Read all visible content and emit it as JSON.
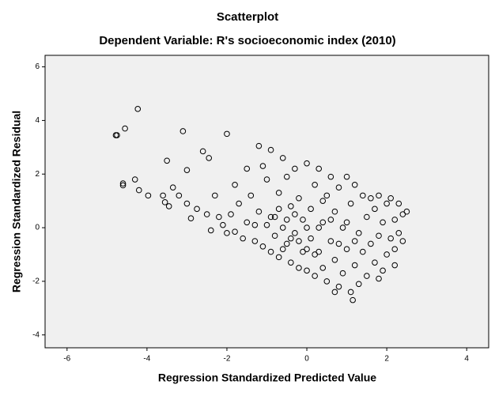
{
  "chart_data": {
    "type": "scatter",
    "title": "Scatterplot",
    "subtitle": "Dependent Variable: R's socioeconomic index (2010)",
    "x_label": "Regression Standardized Predicted Value",
    "y_label": "Regression Standardized Residual",
    "color": "#000000",
    "xlim": [
      -6.55,
      4.55
    ],
    "ylim": [
      -4.48,
      6.43
    ],
    "xticks": [
      -6,
      -4,
      -2,
      0,
      2,
      4
    ],
    "yticks": [
      -4,
      -2,
      0,
      2,
      4,
      6
    ],
    "x": [
      -4.78,
      -4.75,
      -4.55,
      -4.23,
      -3.1,
      -2.0,
      -4.3,
      -4.6,
      -4.6,
      -4.2,
      -3.97,
      -3.6,
      -3.5,
      -3.35,
      -3.55,
      -3.45,
      -3.2,
      -3.0,
      -2.6,
      -2.45,
      -2.75,
      -3.0,
      -2.9,
      -2.5,
      -2.3,
      -2.2,
      -2.1,
      -2.0,
      -1.9,
      -1.8,
      -1.7,
      -1.6,
      -1.5,
      -1.4,
      -1.3,
      -1.2,
      -1.2,
      -1.1,
      -1.0,
      -1.0,
      -0.9,
      -0.9,
      -0.8,
      -0.8,
      -0.7,
      -0.7,
      -0.6,
      -0.6,
      -0.5,
      -0.5,
      -0.4,
      -0.4,
      -0.3,
      -0.3,
      -0.2,
      -0.2,
      -0.1,
      -0.1,
      0.0,
      0.0,
      0.1,
      0.1,
      0.2,
      0.2,
      0.3,
      0.3,
      0.4,
      0.4,
      0.5,
      0.5,
      0.6,
      0.6,
      0.7,
      0.7,
      0.8,
      0.8,
      0.9,
      0.9,
      1.0,
      1.0,
      1.1,
      1.1,
      1.2,
      1.2,
      1.3,
      1.3,
      1.4,
      1.4,
      1.5,
      1.5,
      1.6,
      1.6,
      1.7,
      1.7,
      1.8,
      1.8,
      1.9,
      1.9,
      2.0,
      2.0,
      2.1,
      2.1,
      2.2,
      2.2,
      2.3,
      2.3,
      2.4,
      2.4,
      2.5,
      1.15,
      0.7,
      2.2,
      1.8,
      -1.5,
      -1.1,
      -2.4,
      -1.8,
      0.0,
      -0.3,
      0.3,
      0.6,
      -0.6,
      -0.2,
      0.2,
      0.0,
      -0.7,
      0.4,
      1.0,
      0.8,
      -0.4,
      -0.9,
      -1.3,
      -0.5,
      1.2
    ],
    "values": [
      3.45,
      3.45,
      3.7,
      4.43,
      3.6,
      3.5,
      1.8,
      1.65,
      1.58,
      1.4,
      1.2,
      1.2,
      2.5,
      1.5,
      0.95,
      0.8,
      1.2,
      2.15,
      2.85,
      2.6,
      0.7,
      0.9,
      0.35,
      0.5,
      1.2,
      0.4,
      0.1,
      -0.2,
      0.5,
      1.6,
      0.9,
      -0.4,
      0.2,
      1.2,
      -0.5,
      0.6,
      3.05,
      -0.7,
      1.8,
      0.1,
      -0.9,
      2.9,
      0.4,
      -0.3,
      1.3,
      -1.1,
      2.6,
      0.0,
      -0.6,
      1.9,
      -1.3,
      0.8,
      2.2,
      -0.2,
      -1.5,
      1.1,
      0.3,
      -0.9,
      2.4,
      -1.6,
      0.7,
      -0.4,
      1.6,
      -1.8,
      -0.9,
      2.2,
      0.2,
      -1.5,
      1.2,
      -2.0,
      -0.5,
      1.9,
      -1.2,
      0.6,
      -2.2,
      1.5,
      0.0,
      -1.7,
      1.9,
      -0.8,
      -2.4,
      0.9,
      -1.4,
      1.6,
      -0.2,
      -2.1,
      1.2,
      -0.9,
      0.4,
      -1.8,
      1.1,
      -0.6,
      -1.3,
      0.7,
      1.2,
      -0.3,
      -1.6,
      0.2,
      0.9,
      -1.0,
      -0.4,
      1.1,
      0.3,
      -0.8,
      0.9,
      -0.2,
      0.5,
      -0.5,
      0.6,
      -2.7,
      -2.4,
      -1.4,
      -1.9,
      2.2,
      2.3,
      -0.1,
      -0.15,
      0.0,
      0.5,
      0.0,
      0.3,
      -0.8,
      -0.5,
      -1.0,
      -0.8,
      0.7,
      1.0,
      0.2,
      -0.6,
      -0.4,
      0.4,
      0.1,
      0.3,
      -0.5
    ]
  }
}
